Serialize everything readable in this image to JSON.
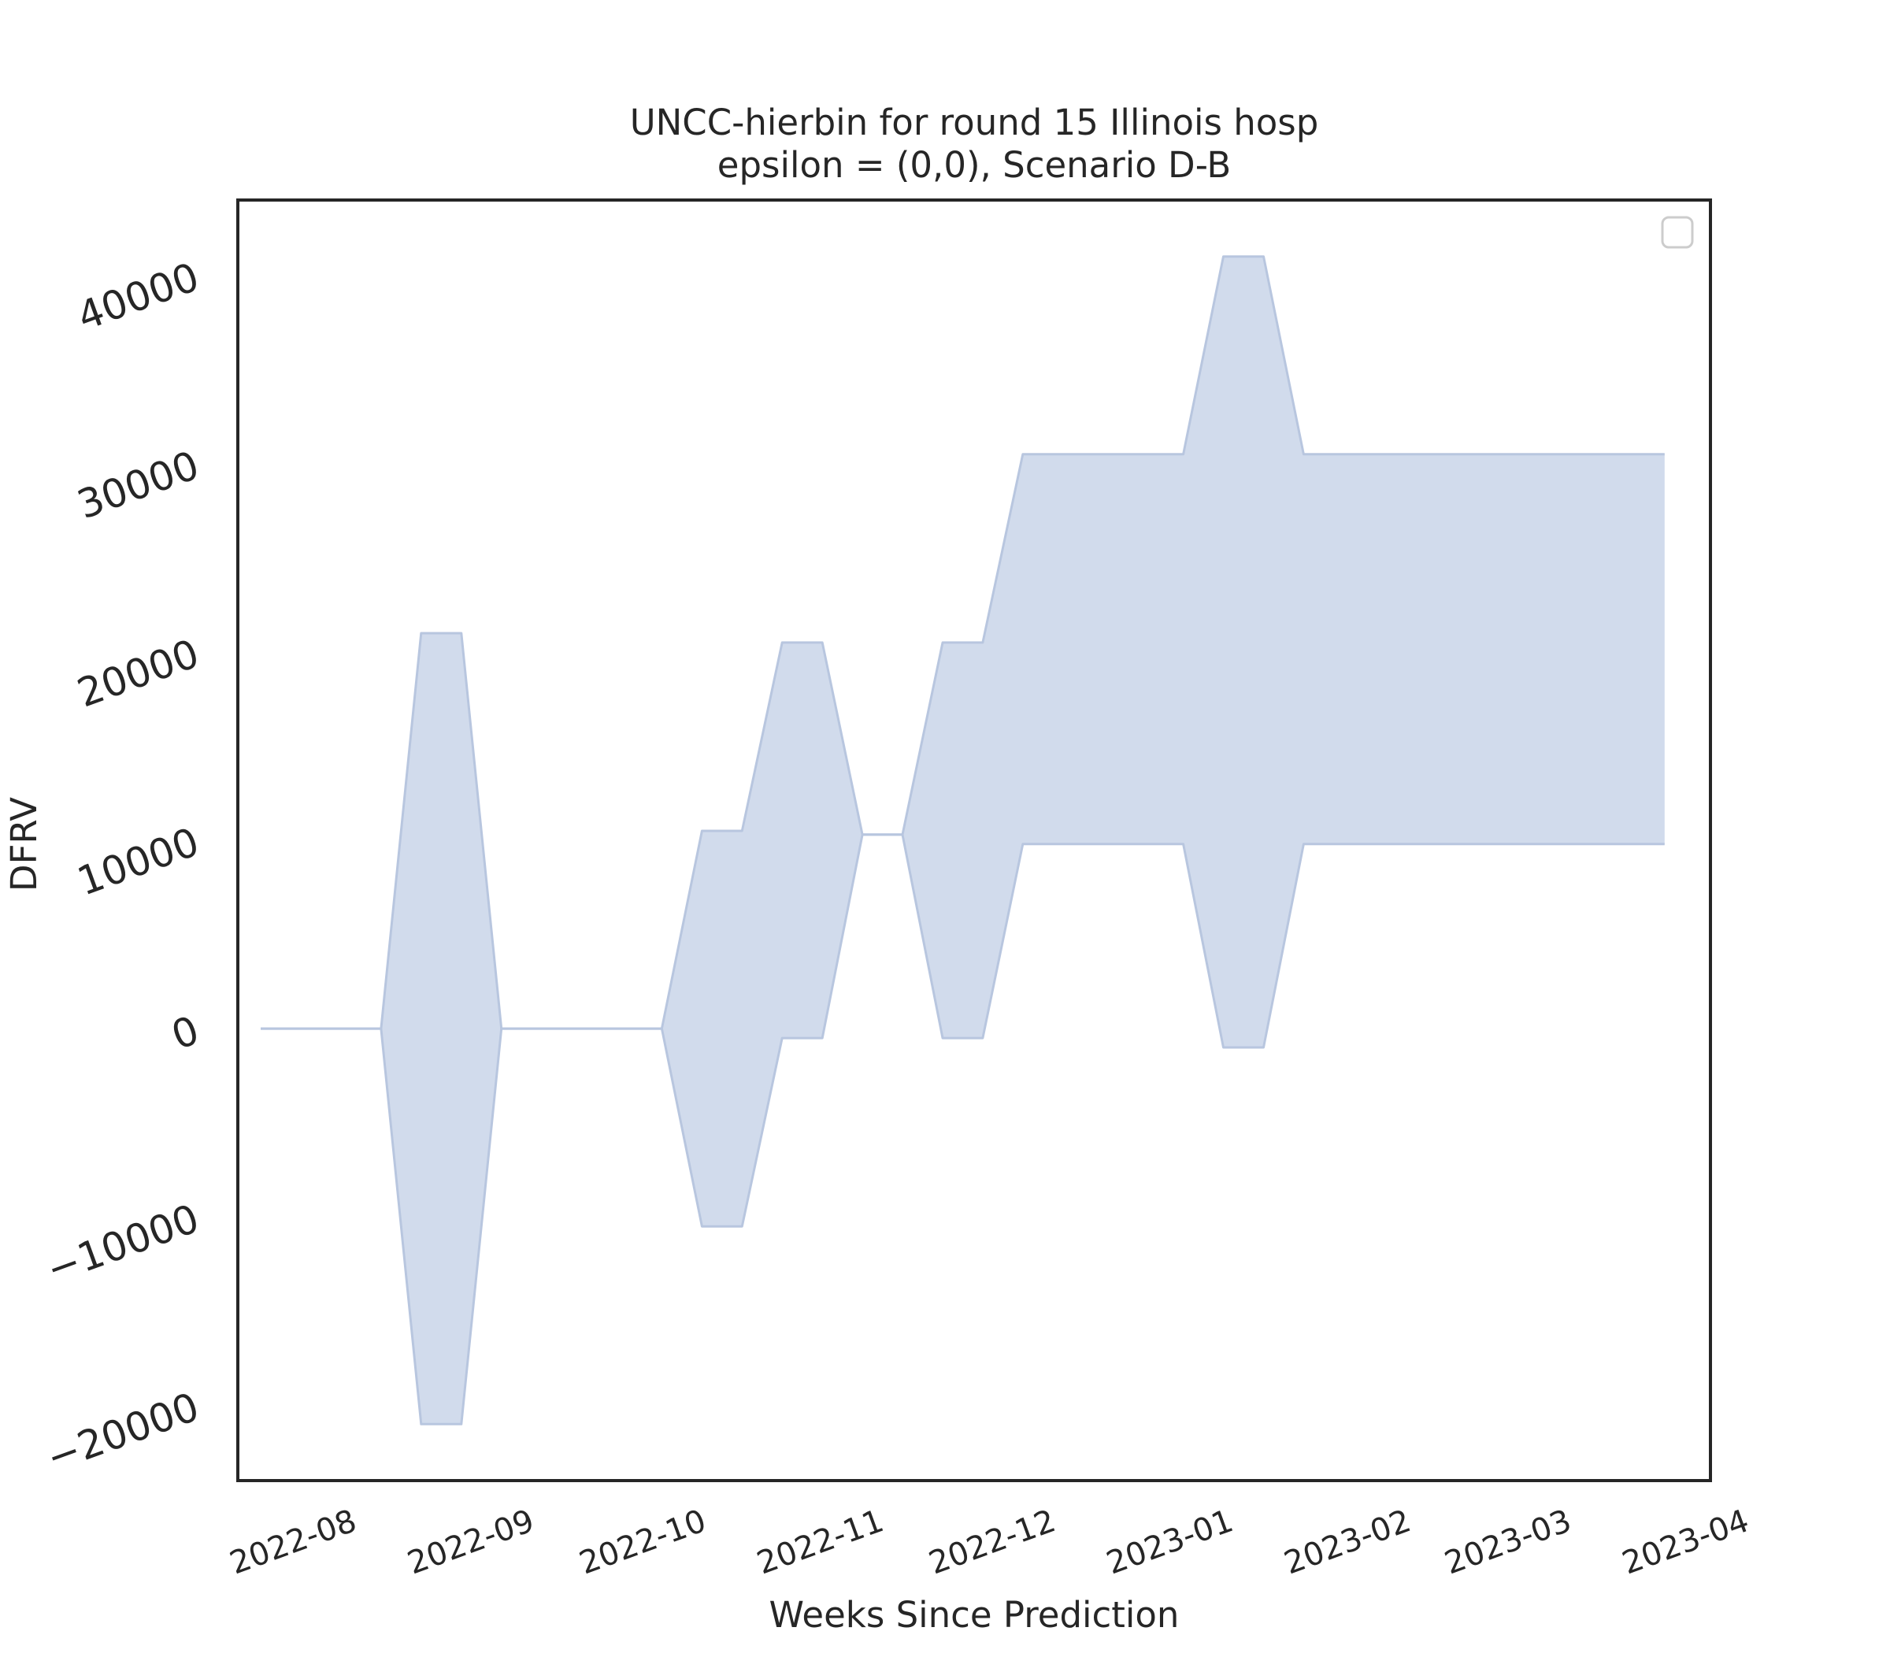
{
  "chart_data": {
    "type": "area",
    "title": "UNCC-hierbin for round 15 Illinois hosp",
    "subtitle": "epsilon = (0,0), Scenario D-B",
    "xlabel": "Weeks Since Prediction",
    "ylabel": "DFRV",
    "x_tick_labels": [
      "2022-08",
      "2022-09",
      "2022-10",
      "2022-11",
      "2022-12",
      "2023-01",
      "2023-02",
      "2023-03",
      "2023-04"
    ],
    "y_ticks": [
      -20000,
      -10000,
      0,
      10000,
      20000,
      30000,
      40000
    ],
    "xlim": [
      "2022-07-20",
      "2023-04-03"
    ],
    "ylim": [
      -24000,
      44000
    ],
    "grid": false,
    "legend": "top-right (empty)",
    "series": [
      {
        "fill_color": "#d1dbec",
        "line_color": "#b8c6df",
        "x": [
          "2022-07-24",
          "2022-08-14",
          "2022-08-21",
          "2022-08-28",
          "2022-09-04",
          "2022-10-02",
          "2022-10-09",
          "2022-10-16",
          "2022-10-23",
          "2022-10-30",
          "2022-11-06",
          "2022-11-13",
          "2022-11-20",
          "2022-11-27",
          "2022-12-04",
          "2022-12-11",
          "2022-12-18",
          "2022-12-25",
          "2023-01-01",
          "2023-01-08",
          "2023-01-15",
          "2023-01-22",
          "2023-01-29",
          "2023-02-05",
          "2023-02-12",
          "2023-02-19",
          "2023-02-26",
          "2023-03-05",
          "2023-03-12",
          "2023-03-19",
          "2023-03-26"
        ],
        "upper": [
          0,
          0,
          21000,
          21000,
          0,
          0,
          10500,
          10500,
          20500,
          20500,
          10300,
          10300,
          20500,
          20500,
          30500,
          30500,
          30500,
          30500,
          30500,
          41000,
          41000,
          30500,
          30500,
          30500,
          30500,
          30500,
          30500,
          30500,
          30500,
          30500,
          30500
        ],
        "lower": [
          0,
          0,
          -21000,
          -21000,
          0,
          0,
          -10500,
          -10500,
          -500,
          -500,
          10300,
          10300,
          -500,
          -500,
          9800,
          9800,
          9800,
          9800,
          9800,
          -1000,
          -1000,
          9800,
          9800,
          9800,
          9800,
          9800,
          9800,
          9800,
          9800,
          9800,
          9800
        ]
      }
    ]
  }
}
